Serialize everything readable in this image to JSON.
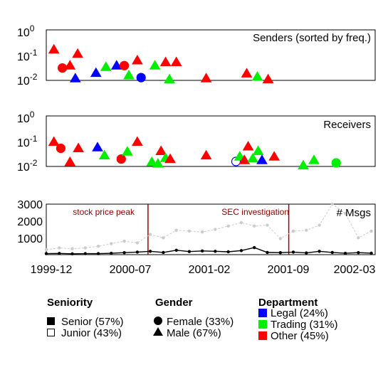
{
  "figure": {
    "senders_title": "Senders (sorted by freq.)",
    "receivers_title": "Receivers",
    "msgs_title": "# Msgs"
  },
  "colors": {
    "legal": "#0000ff",
    "trading": "#00ee00",
    "other": "#ff0000",
    "avg_line": "#000000",
    "total_line": "#cccccc",
    "event_line": "#a00000"
  },
  "x_ticks": [
    "1999-12",
    "2000-07",
    "2001-02",
    "2001-09",
    "2002-03"
  ],
  "chart_data": [
    {
      "type": "scatter",
      "title": "Senders (sorted by freq.)",
      "y_scale": "log",
      "ylim": [
        0.01,
        1
      ],
      "y_ticks": [
        {
          "base": "10",
          "exp": "0"
        },
        {
          "base": "10",
          "exp": "-1"
        },
        {
          "base": "10",
          "exp": "-2"
        }
      ],
      "points": [
        {
          "x": 0.5,
          "y": 0.18,
          "shape": "triangle",
          "dept": "other",
          "seniority": "senior"
        },
        {
          "x": 1.05,
          "y": 0.032,
          "shape": "circle",
          "dept": "other",
          "seniority": "senior"
        },
        {
          "x": 1.55,
          "y": 0.04,
          "shape": "triangle",
          "dept": "other",
          "seniority": "senior"
        },
        {
          "x": 1.9,
          "y": 0.012,
          "shape": "triangle",
          "dept": "legal",
          "seniority": "senior"
        },
        {
          "x": 2.05,
          "y": 0.12,
          "shape": "triangle",
          "dept": "other",
          "seniority": "senior"
        },
        {
          "x": 3.25,
          "y": 0.02,
          "shape": "triangle",
          "dept": "legal",
          "seniority": "senior"
        },
        {
          "x": 3.9,
          "y": 0.035,
          "shape": "triangle",
          "dept": "trading",
          "seniority": "senior"
        },
        {
          "x": 4.6,
          "y": 0.04,
          "shape": "triangle",
          "dept": "legal",
          "seniority": "senior"
        },
        {
          "x": 5.1,
          "y": 0.04,
          "shape": "circle",
          "dept": "other",
          "seniority": "senior"
        },
        {
          "x": 5.4,
          "y": 0.016,
          "shape": "triangle",
          "dept": "trading",
          "seniority": "senior"
        },
        {
          "x": 5.95,
          "y": 0.065,
          "shape": "triangle",
          "dept": "other",
          "seniority": "senior"
        },
        {
          "x": 6.2,
          "y": 0.013,
          "shape": "circle",
          "dept": "legal",
          "seniority": "senior"
        },
        {
          "x": 7.1,
          "y": 0.04,
          "shape": "triangle",
          "dept": "trading",
          "seniority": "senior"
        },
        {
          "x": 7.8,
          "y": 0.055,
          "shape": "triangle",
          "dept": "other",
          "seniority": "senior"
        },
        {
          "x": 8.05,
          "y": 0.011,
          "shape": "triangle",
          "dept": "trading",
          "seniority": "senior"
        },
        {
          "x": 8.5,
          "y": 0.055,
          "shape": "triangle",
          "dept": "other",
          "seniority": "senior"
        },
        {
          "x": 10.45,
          "y": 0.012,
          "shape": "triangle",
          "dept": "other",
          "seniority": "senior"
        },
        {
          "x": 13.1,
          "y": 0.019,
          "shape": "triangle",
          "dept": "other",
          "seniority": "senior"
        },
        {
          "x": 13.8,
          "y": 0.014,
          "shape": "triangle",
          "dept": "trading",
          "seniority": "senior"
        },
        {
          "x": 14.5,
          "y": 0.011,
          "shape": "triangle",
          "dept": "other",
          "seniority": "senior"
        }
      ]
    },
    {
      "type": "scatter",
      "title": "Receivers",
      "y_scale": "log",
      "ylim": [
        0.01,
        1
      ],
      "y_ticks": [
        {
          "base": "10",
          "exp": "0"
        },
        {
          "base": "10",
          "exp": "-1"
        },
        {
          "base": "10",
          "exp": "-2"
        }
      ],
      "points": [
        {
          "x": 0.5,
          "y": 0.1,
          "shape": "triangle",
          "dept": "other",
          "seniority": "senior"
        },
        {
          "x": 0.95,
          "y": 0.055,
          "shape": "circle",
          "dept": "other",
          "seniority": "senior"
        },
        {
          "x": 1.55,
          "y": 0.015,
          "shape": "triangle",
          "dept": "other",
          "seniority": "senior"
        },
        {
          "x": 2.1,
          "y": 0.055,
          "shape": "triangle",
          "dept": "other",
          "seniority": "senior"
        },
        {
          "x": 3.35,
          "y": 0.06,
          "shape": "triangle",
          "dept": "legal",
          "seniority": "senior"
        },
        {
          "x": 3.8,
          "y": 0.028,
          "shape": "triangle",
          "dept": "trading",
          "seniority": "senior"
        },
        {
          "x": 4.9,
          "y": 0.02,
          "shape": "circle",
          "dept": "other",
          "seniority": "senior"
        },
        {
          "x": 5.3,
          "y": 0.04,
          "shape": "triangle",
          "dept": "trading",
          "seniority": "senior"
        },
        {
          "x": 5.95,
          "y": 0.1,
          "shape": "triangle",
          "dept": "other",
          "seniority": "senior"
        },
        {
          "x": 6.9,
          "y": 0.015,
          "shape": "triangle",
          "dept": "trading",
          "seniority": "senior"
        },
        {
          "x": 7.3,
          "y": 0.013,
          "shape": "triangle",
          "dept": "trading",
          "seniority": "senior"
        },
        {
          "x": 7.5,
          "y": 0.042,
          "shape": "triangle",
          "dept": "other",
          "seniority": "senior"
        },
        {
          "x": 7.8,
          "y": 0.022,
          "shape": "triangle",
          "dept": "trading",
          "seniority": "senior"
        },
        {
          "x": 8.1,
          "y": 0.02,
          "shape": "triangle",
          "dept": "other",
          "seniority": "senior"
        },
        {
          "x": 10.45,
          "y": 0.028,
          "shape": "triangle",
          "dept": "other",
          "seniority": "senior"
        },
        {
          "x": 12.4,
          "y": 0.016,
          "shape": "circle",
          "dept": "legal",
          "seniority": "junior"
        },
        {
          "x": 12.65,
          "y": 0.025,
          "shape": "triangle",
          "dept": "trading",
          "seniority": "senior"
        },
        {
          "x": 12.95,
          "y": 0.018,
          "shape": "triangle",
          "dept": "other",
          "seniority": "senior"
        },
        {
          "x": 13.2,
          "y": 0.065,
          "shape": "triangle",
          "dept": "other",
          "seniority": "senior"
        },
        {
          "x": 13.5,
          "y": 0.021,
          "shape": "triangle",
          "dept": "trading",
          "seniority": "senior"
        },
        {
          "x": 13.85,
          "y": 0.042,
          "shape": "triangle",
          "dept": "trading",
          "seniority": "senior"
        },
        {
          "x": 14.1,
          "y": 0.018,
          "shape": "triangle",
          "dept": "legal",
          "seniority": "senior"
        },
        {
          "x": 14.9,
          "y": 0.025,
          "shape": "triangle",
          "dept": "other",
          "seniority": "senior"
        },
        {
          "x": 16.8,
          "y": 0.011,
          "shape": "triangle",
          "dept": "trading",
          "seniority": "senior"
        },
        {
          "x": 17.5,
          "y": 0.018,
          "shape": "triangle",
          "dept": "trading",
          "seniority": "senior"
        },
        {
          "x": 18.95,
          "y": 0.014,
          "shape": "circle",
          "dept": "trading",
          "seniority": "senior"
        }
      ]
    },
    {
      "type": "line",
      "title": "# Msgs",
      "ylim": [
        0,
        3000
      ],
      "y_ticks": [
        "3000",
        "2000",
        "1000"
      ],
      "events": [
        {
          "x": 6.65,
          "label": "stock price peak"
        },
        {
          "x": 15.85,
          "label": "SEC investigation"
        }
      ],
      "series": [
        {
          "style": "total",
          "x": [
            0,
            0.85,
            1.7,
            2.55,
            3.4,
            4.25,
            5.1,
            5.95,
            6.8,
            7.65,
            8.5,
            9.35,
            10.2,
            11.05,
            11.9,
            12.75,
            13.6,
            14.45,
            15.3,
            16.15,
            17.0,
            17.85,
            18.7,
            19.55,
            20.4,
            21.25
          ],
          "y": [
            300,
            400,
            350,
            400,
            500,
            650,
            800,
            700,
            1200,
            1000,
            1450,
            1400,
            1350,
            1500,
            1700,
            1900,
            1700,
            1750,
            950,
            1400,
            1450,
            1750,
            3000,
            2450,
            1000,
            1400
          ]
        },
        {
          "style": "average",
          "x": [
            0,
            0.85,
            1.7,
            2.55,
            3.4,
            4.25,
            5.1,
            5.95,
            6.8,
            7.65,
            8.5,
            9.35,
            10.2,
            11.05,
            11.9,
            12.75,
            13.6,
            14.45,
            15.3,
            16.15,
            17.0,
            17.85,
            18.7,
            19.55,
            20.4,
            21.25
          ],
          "y": [
            60,
            70,
            50,
            60,
            60,
            80,
            120,
            150,
            200,
            130,
            260,
            180,
            220,
            200,
            170,
            240,
            420,
            130,
            120,
            150,
            100,
            200,
            130,
            80,
            120,
            90
          ]
        }
      ]
    }
  ],
  "legend": {
    "seniority_title": "Seniority",
    "senior": "Senior (57%)",
    "junior": "Junior (43%)",
    "gender_title": "Gender",
    "female": "Female (33%)",
    "male": "Male (67%)",
    "department_title": "Department",
    "legal": "Legal (24%)",
    "trading": "Trading (31%)",
    "other": "Other (45%)"
  }
}
